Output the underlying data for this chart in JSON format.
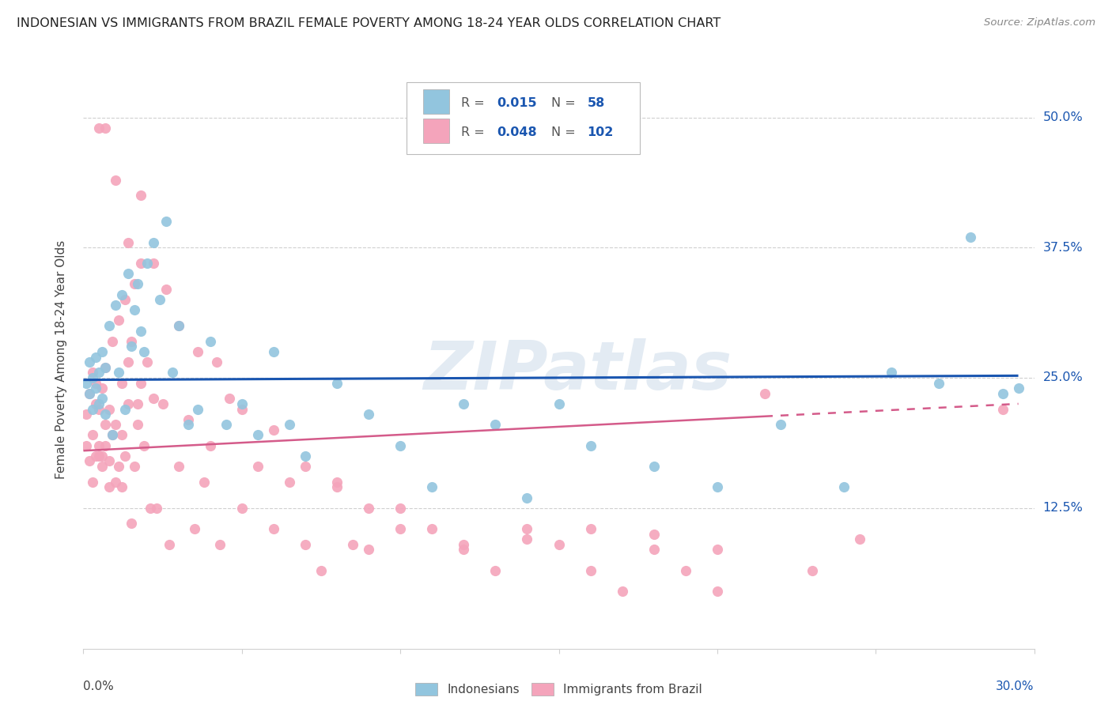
{
  "title": "INDONESIAN VS IMMIGRANTS FROM BRAZIL FEMALE POVERTY AMONG 18-24 YEAR OLDS CORRELATION CHART",
  "source": "Source: ZipAtlas.com",
  "ylabel": "Female Poverty Among 18-24 Year Olds",
  "ytick_labels": [
    "12.5%",
    "25.0%",
    "37.5%",
    "50.0%"
  ],
  "ytick_vals": [
    0.125,
    0.25,
    0.375,
    0.5
  ],
  "xlim": [
    0.0,
    0.3
  ],
  "ylim": [
    -0.01,
    0.545
  ],
  "blue_color": "#92c5de",
  "pink_color": "#f4a4bb",
  "line_blue": "#1a56b0",
  "line_pink": "#d45b8a",
  "watermark": "ZIPatlas",
  "indonesian_x": [
    0.001,
    0.002,
    0.002,
    0.003,
    0.003,
    0.004,
    0.004,
    0.005,
    0.005,
    0.006,
    0.006,
    0.007,
    0.007,
    0.008,
    0.009,
    0.01,
    0.011,
    0.012,
    0.013,
    0.014,
    0.015,
    0.016,
    0.017,
    0.018,
    0.019,
    0.02,
    0.022,
    0.024,
    0.026,
    0.028,
    0.03,
    0.033,
    0.036,
    0.04,
    0.045,
    0.05,
    0.055,
    0.06,
    0.065,
    0.07,
    0.08,
    0.09,
    0.1,
    0.11,
    0.12,
    0.13,
    0.14,
    0.15,
    0.16,
    0.18,
    0.2,
    0.22,
    0.24,
    0.255,
    0.27,
    0.28,
    0.29,
    0.295
  ],
  "indonesian_y": [
    0.245,
    0.235,
    0.265,
    0.22,
    0.25,
    0.24,
    0.27,
    0.225,
    0.255,
    0.23,
    0.275,
    0.215,
    0.26,
    0.3,
    0.195,
    0.32,
    0.255,
    0.33,
    0.22,
    0.35,
    0.28,
    0.315,
    0.34,
    0.295,
    0.275,
    0.36,
    0.38,
    0.325,
    0.4,
    0.255,
    0.3,
    0.205,
    0.22,
    0.285,
    0.205,
    0.225,
    0.195,
    0.275,
    0.205,
    0.175,
    0.245,
    0.215,
    0.185,
    0.145,
    0.225,
    0.205,
    0.135,
    0.225,
    0.185,
    0.165,
    0.145,
    0.205,
    0.145,
    0.255,
    0.245,
    0.385,
    0.235,
    0.24
  ],
  "brazil_x": [
    0.001,
    0.001,
    0.002,
    0.002,
    0.003,
    0.003,
    0.003,
    0.004,
    0.004,
    0.004,
    0.005,
    0.005,
    0.005,
    0.006,
    0.006,
    0.006,
    0.007,
    0.007,
    0.007,
    0.008,
    0.008,
    0.008,
    0.009,
    0.009,
    0.01,
    0.01,
    0.011,
    0.011,
    0.012,
    0.012,
    0.012,
    0.013,
    0.013,
    0.014,
    0.014,
    0.015,
    0.015,
    0.016,
    0.016,
    0.017,
    0.017,
    0.018,
    0.018,
    0.019,
    0.02,
    0.021,
    0.022,
    0.023,
    0.025,
    0.027,
    0.03,
    0.033,
    0.035,
    0.038,
    0.04,
    0.043,
    0.046,
    0.05,
    0.055,
    0.06,
    0.065,
    0.07,
    0.075,
    0.08,
    0.085,
    0.09,
    0.1,
    0.11,
    0.12,
    0.13,
    0.14,
    0.15,
    0.16,
    0.17,
    0.18,
    0.19,
    0.2,
    0.215,
    0.23,
    0.245,
    0.005,
    0.007,
    0.01,
    0.014,
    0.018,
    0.022,
    0.026,
    0.03,
    0.036,
    0.042,
    0.05,
    0.06,
    0.07,
    0.08,
    0.09,
    0.1,
    0.12,
    0.14,
    0.16,
    0.18,
    0.2,
    0.29
  ],
  "brazil_y": [
    0.215,
    0.185,
    0.17,
    0.235,
    0.15,
    0.255,
    0.195,
    0.175,
    0.225,
    0.245,
    0.185,
    0.22,
    0.175,
    0.165,
    0.24,
    0.175,
    0.205,
    0.26,
    0.185,
    0.145,
    0.22,
    0.17,
    0.195,
    0.285,
    0.15,
    0.205,
    0.165,
    0.305,
    0.145,
    0.245,
    0.195,
    0.175,
    0.325,
    0.225,
    0.265,
    0.11,
    0.285,
    0.165,
    0.34,
    0.205,
    0.225,
    0.36,
    0.245,
    0.185,
    0.265,
    0.125,
    0.23,
    0.125,
    0.225,
    0.09,
    0.165,
    0.21,
    0.105,
    0.15,
    0.185,
    0.09,
    0.23,
    0.125,
    0.165,
    0.105,
    0.15,
    0.09,
    0.065,
    0.15,
    0.09,
    0.085,
    0.125,
    0.105,
    0.09,
    0.065,
    0.105,
    0.09,
    0.065,
    0.045,
    0.085,
    0.065,
    0.045,
    0.235,
    0.065,
    0.095,
    0.49,
    0.49,
    0.44,
    0.38,
    0.425,
    0.36,
    0.335,
    0.3,
    0.275,
    0.265,
    0.22,
    0.2,
    0.165,
    0.145,
    0.125,
    0.105,
    0.085,
    0.095,
    0.105,
    0.1,
    0.085,
    0.22
  ],
  "blue_line_x0": 0.0,
  "blue_line_x1": 0.295,
  "blue_line_y0": 0.248,
  "blue_line_y1": 0.252,
  "pink_line_x0": 0.0,
  "pink_line_x1_solid": 0.215,
  "pink_line_x1_dash": 0.295,
  "pink_line_y0": 0.18,
  "pink_line_y1_solid": 0.213,
  "pink_line_y1_dash": 0.225
}
